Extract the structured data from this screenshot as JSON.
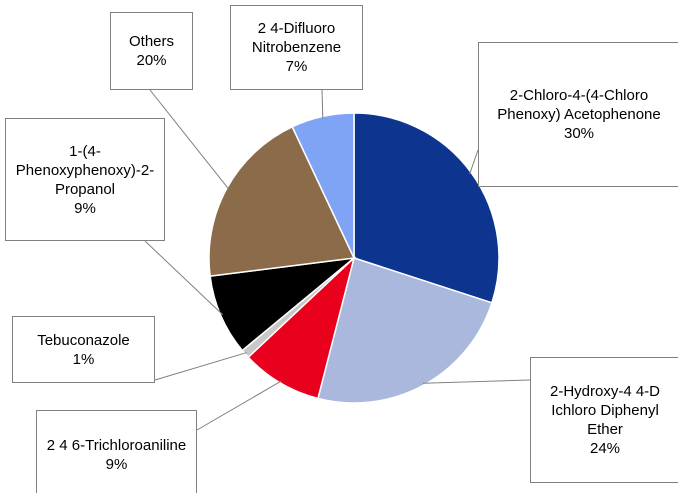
{
  "chart_data": {
    "type": "pie",
    "categories": [
      "2-Chloro-4-(4-Chloro Phenoxy) Acetophenone",
      "2-Hydroxy-4 4-D Ichloro Diphenyl Ether",
      "2 4 6-Trichloroaniline",
      "Tebuconazole",
      "1-(4-Phenoxyphenoxy)-2-Propanol",
      "Others",
      "2 4-Difluoro Nitrobenzene"
    ],
    "values": [
      30,
      24,
      9,
      1,
      9,
      20,
      7
    ],
    "value_labels": [
      "30%",
      "24%",
      "9%",
      "1%",
      "9%",
      "20%",
      "7%"
    ],
    "colors": [
      "#0d3590",
      "#a9b8dc",
      "#e8001c",
      "#c8c8c8",
      "#000000",
      "#8b6b4a",
      "#7fa4f5"
    ]
  }
}
